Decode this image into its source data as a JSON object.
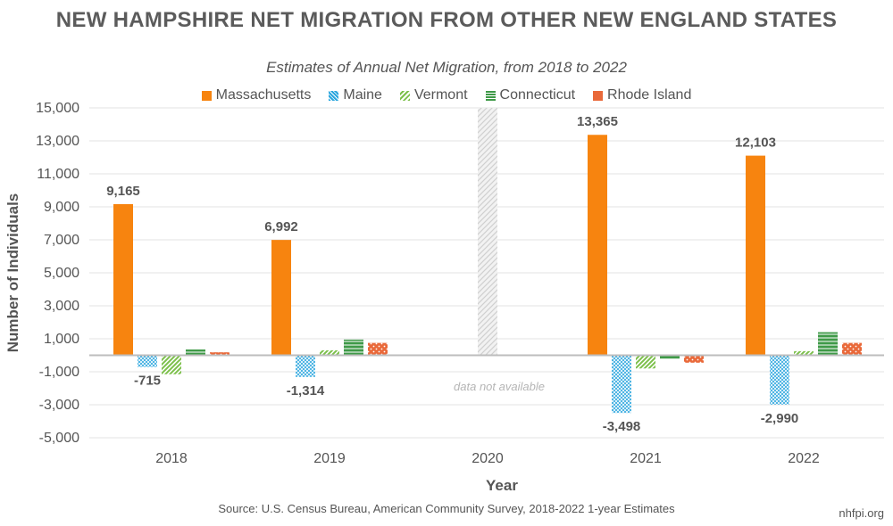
{
  "chart_data": {
    "type": "bar",
    "title": "NEW HAMPSHIRE NET MIGRATION FROM OTHER NEW ENGLAND STATES",
    "subtitle": "Estimates of Annual Net Migration, from 2018 to 2022",
    "xlabel": "Year",
    "ylabel": "Number of Individuals",
    "ylim": [
      -5000,
      15000
    ],
    "yticks": [
      15000,
      13000,
      11000,
      9000,
      7000,
      5000,
      3000,
      1000,
      -1000,
      -3000,
      -5000
    ],
    "ytick_labels": [
      "15,000",
      "13,000",
      "11,000",
      "9,000",
      "7,000",
      "5,000",
      "3,000",
      "1,000",
      "-1,000",
      "-3,000",
      "-5,000"
    ],
    "categories": [
      "2018",
      "2019",
      "2020",
      "2021",
      "2022"
    ],
    "series": [
      {
        "name": "Massachusetts",
        "color": "#f7840f",
        "values": [
          9165,
          6992,
          null,
          13365,
          12103
        ],
        "labels": [
          "9,165",
          "6,992",
          null,
          "13,365",
          "12,103"
        ]
      },
      {
        "name": "Maine",
        "color": "#2ba6de",
        "values": [
          -715,
          -1314,
          null,
          -3498,
          -2990
        ],
        "labels": [
          "-715",
          "-1,314",
          null,
          "-3,498",
          "-2,990"
        ]
      },
      {
        "name": "Vermont",
        "color": "#7cc04b",
        "values": [
          -1150,
          300,
          null,
          -800,
          250
        ],
        "labels": [
          null,
          null,
          null,
          null,
          null
        ]
      },
      {
        "name": "Connecticut",
        "color": "#3f9a48",
        "values": [
          350,
          950,
          null,
          -200,
          1400
        ],
        "labels": [
          null,
          null,
          null,
          null,
          null
        ]
      },
      {
        "name": "Rhode Island",
        "color": "#e9693a",
        "values": [
          180,
          750,
          null,
          -450,
          750
        ],
        "labels": [
          null,
          null,
          null,
          null,
          null
        ]
      }
    ],
    "unavailable_category": "2020",
    "unavailable_note": "data not available"
  },
  "footer": {
    "source": "Source: U.S. Census Bureau, American Community Survey, 2018-2022 1-year Estimates",
    "credit": "nhfpi.org"
  }
}
